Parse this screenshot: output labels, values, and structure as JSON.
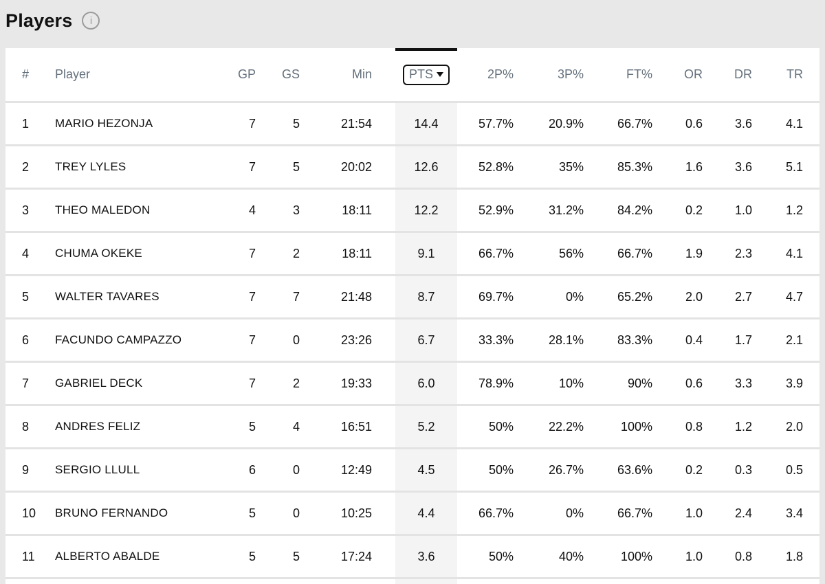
{
  "page": {
    "title": "Players",
    "info_icon": "i"
  },
  "table": {
    "sorted_key": "pts",
    "sort_direction": "desc",
    "columns": [
      {
        "key": "rank",
        "label": "#"
      },
      {
        "key": "player",
        "label": "Player"
      },
      {
        "key": "gp",
        "label": "GP"
      },
      {
        "key": "gs",
        "label": "GS"
      },
      {
        "key": "min",
        "label": "Min"
      },
      {
        "key": "pts",
        "label": "PTS"
      },
      {
        "key": "p2",
        "label": "2P%"
      },
      {
        "key": "p3",
        "label": "3P%"
      },
      {
        "key": "ft",
        "label": "FT%"
      },
      {
        "key": "or",
        "label": "OR"
      },
      {
        "key": "dr",
        "label": "DR"
      },
      {
        "key": "tr",
        "label": "TR"
      }
    ],
    "rows": [
      {
        "rank": "1",
        "player": "MARIO HEZONJA",
        "gp": "7",
        "gs": "5",
        "min": "21:54",
        "pts": "14.4",
        "p2": "57.7%",
        "p3": "20.9%",
        "ft": "66.7%",
        "or": "0.6",
        "dr": "3.6",
        "tr": "4.1"
      },
      {
        "rank": "2",
        "player": "TREY LYLES",
        "gp": "7",
        "gs": "5",
        "min": "20:02",
        "pts": "12.6",
        "p2": "52.8%",
        "p3": "35%",
        "ft": "85.3%",
        "or": "1.6",
        "dr": "3.6",
        "tr": "5.1"
      },
      {
        "rank": "3",
        "player": "THEO MALEDON",
        "gp": "4",
        "gs": "3",
        "min": "18:11",
        "pts": "12.2",
        "p2": "52.9%",
        "p3": "31.2%",
        "ft": "84.2%",
        "or": "0.2",
        "dr": "1.0",
        "tr": "1.2"
      },
      {
        "rank": "4",
        "player": "CHUMA OKEKE",
        "gp": "7",
        "gs": "2",
        "min": "18:11",
        "pts": "9.1",
        "p2": "66.7%",
        "p3": "56%",
        "ft": "66.7%",
        "or": "1.9",
        "dr": "2.3",
        "tr": "4.1"
      },
      {
        "rank": "5",
        "player": "WALTER TAVARES",
        "gp": "7",
        "gs": "7",
        "min": "21:48",
        "pts": "8.7",
        "p2": "69.7%",
        "p3": "0%",
        "ft": "65.2%",
        "or": "2.0",
        "dr": "2.7",
        "tr": "4.7"
      },
      {
        "rank": "6",
        "player": "FACUNDO CAMPAZZO",
        "gp": "7",
        "gs": "0",
        "min": "23:26",
        "pts": "6.7",
        "p2": "33.3%",
        "p3": "28.1%",
        "ft": "83.3%",
        "or": "0.4",
        "dr": "1.7",
        "tr": "2.1"
      },
      {
        "rank": "7",
        "player": "GABRIEL DECK",
        "gp": "7",
        "gs": "2",
        "min": "19:33",
        "pts": "6.0",
        "p2": "78.9%",
        "p3": "10%",
        "ft": "90%",
        "or": "0.6",
        "dr": "3.3",
        "tr": "3.9"
      },
      {
        "rank": "8",
        "player": "ANDRES FELIZ",
        "gp": "5",
        "gs": "4",
        "min": "16:51",
        "pts": "5.2",
        "p2": "50%",
        "p3": "22.2%",
        "ft": "100%",
        "or": "0.8",
        "dr": "1.2",
        "tr": "2.0"
      },
      {
        "rank": "9",
        "player": "SERGIO LLULL",
        "gp": "6",
        "gs": "0",
        "min": "12:49",
        "pts": "4.5",
        "p2": "50%",
        "p3": "26.7%",
        "ft": "63.6%",
        "or": "0.2",
        "dr": "0.3",
        "tr": "0.5"
      },
      {
        "rank": "10",
        "player": "BRUNO FERNANDO",
        "gp": "5",
        "gs": "0",
        "min": "10:25",
        "pts": "4.4",
        "p2": "66.7%",
        "p3": "0%",
        "ft": "66.7%",
        "or": "1.0",
        "dr": "2.4",
        "tr": "3.4"
      },
      {
        "rank": "11",
        "player": "ALBERTO ABALDE",
        "gp": "5",
        "gs": "5",
        "min": "17:24",
        "pts": "3.6",
        "p2": "50%",
        "p3": "40%",
        "ft": "100%",
        "or": "1.0",
        "dr": "0.8",
        "tr": "1.8"
      }
    ],
    "colors": {
      "page_bg": "#e8e8e8",
      "table_bg": "#ffffff",
      "header_text": "#64707c",
      "body_text": "#111111",
      "sorted_band": "#f4f4f4",
      "sort_accent": "#111111",
      "separator": "#e3e3e3"
    }
  }
}
